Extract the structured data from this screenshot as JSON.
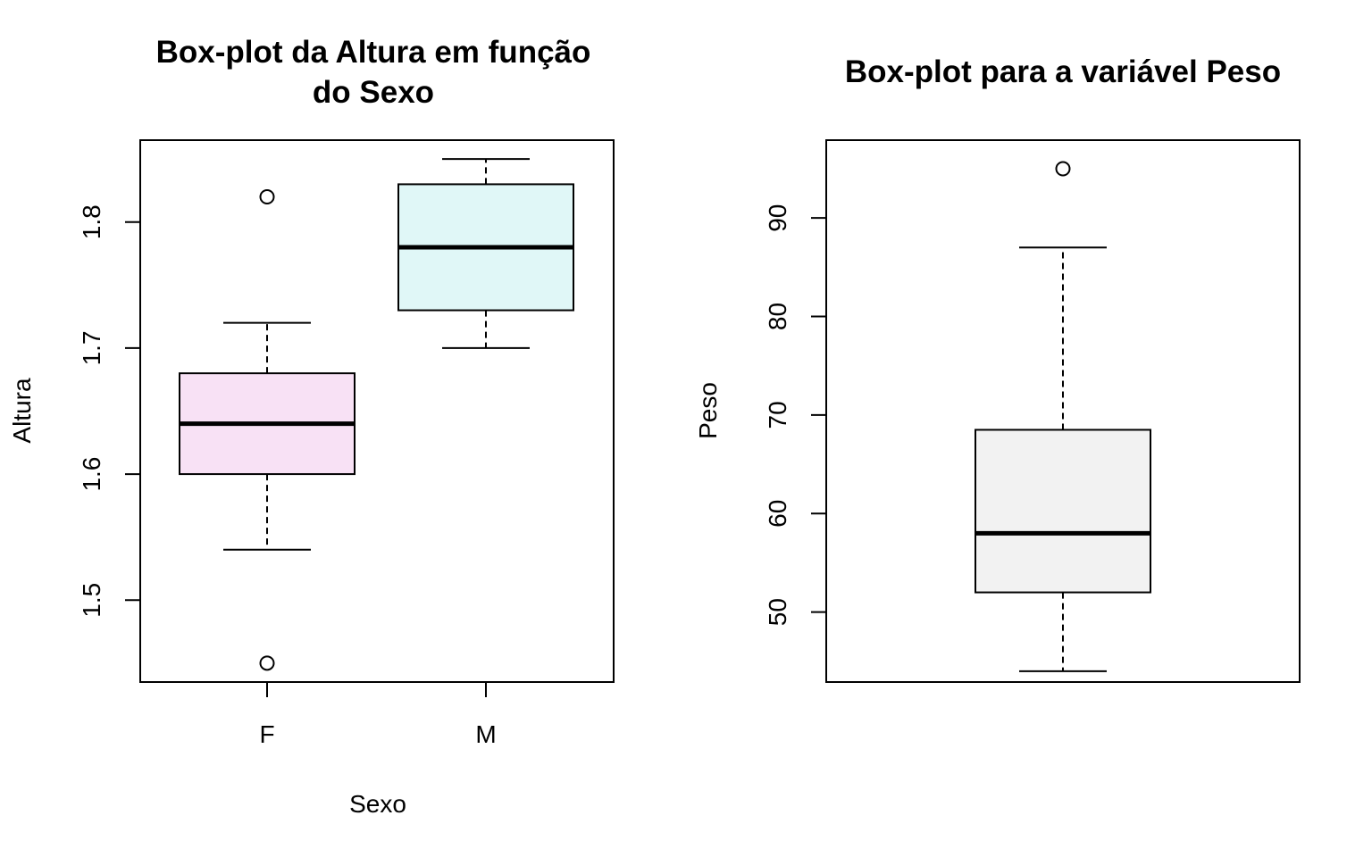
{
  "chart_data": [
    {
      "type": "boxplot",
      "title_lines": [
        "Box-plot da Altura em função",
        "do Sexo"
      ],
      "xlabel": "Sexo",
      "ylabel": "Altura",
      "ylim": [
        1.435,
        1.865
      ],
      "yticks": [
        1.5,
        1.6,
        1.7,
        1.8
      ],
      "ytick_labels": [
        "1.5",
        "1.6",
        "1.7",
        "1.8"
      ],
      "categories": [
        "F",
        "M"
      ],
      "boxes": [
        {
          "category": "F",
          "whisker_low": 1.54,
          "q1": 1.6,
          "median": 1.64,
          "q3": 1.68,
          "whisker_high": 1.72,
          "outliers": [
            1.82,
            1.45
          ],
          "color": "#f8e1f5"
        },
        {
          "category": "M",
          "whisker_low": 1.7,
          "q1": 1.73,
          "median": 1.78,
          "q3": 1.83,
          "whisker_high": 1.85,
          "outliers": [],
          "color": "#e0f7f7"
        }
      ]
    },
    {
      "type": "boxplot",
      "title_lines": [
        "Box-plot para a variável Peso"
      ],
      "xlabel": "",
      "ylabel": "Peso",
      "ylim": [
        42.9,
        97.9
      ],
      "yticks": [
        50,
        60,
        70,
        80,
        90
      ],
      "ytick_labels": [
        "50",
        "60",
        "70",
        "80",
        "90"
      ],
      "categories": [],
      "boxes": [
        {
          "category": "",
          "whisker_low": 44,
          "q1": 52,
          "median": 58,
          "q3": 68.5,
          "whisker_high": 87,
          "outliers": [
            95
          ],
          "color": "#f2f2f2"
        }
      ]
    }
  ]
}
